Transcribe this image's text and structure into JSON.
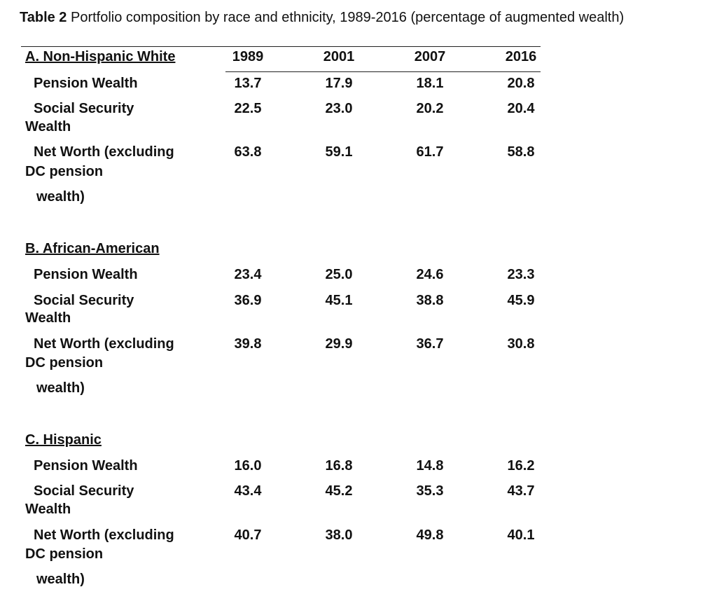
{
  "table": {
    "caption_label": "Table 2",
    "caption_text": "Portfolio composition by race and ethnicity, 1989-2016 (percentage of augmented wealth)",
    "years": [
      "1989",
      "2001",
      "2007",
      "2016"
    ],
    "sections": [
      {
        "title": "A. Non-Hispanic White",
        "rows": [
          {
            "label_lines": [
              "Pension Wealth"
            ],
            "values": [
              "13.7",
              "17.9",
              "18.1",
              "20.8"
            ]
          },
          {
            "label_lines": [
              "Social Security",
              "Wealth"
            ],
            "values": [
              "22.5",
              "23.0",
              "20.2",
              "20.4"
            ]
          },
          {
            "label_lines": [
              "Net Worth (excluding",
              "DC pension",
              "wealth)"
            ],
            "values": [
              "63.8",
              "59.1",
              "61.7",
              "58.8"
            ]
          }
        ]
      },
      {
        "title": "B. African-American",
        "rows": [
          {
            "label_lines": [
              "Pension Wealth"
            ],
            "values": [
              "23.4",
              "25.0",
              "24.6",
              "23.3"
            ]
          },
          {
            "label_lines": [
              "Social Security",
              "Wealth"
            ],
            "values": [
              "36.9",
              "45.1",
              "38.8",
              "45.9"
            ]
          },
          {
            "label_lines": [
              "Net Worth (excluding",
              "DC pension",
              "wealth)"
            ],
            "values": [
              "39.8",
              "29.9",
              "36.7",
              "30.8"
            ]
          }
        ]
      },
      {
        "title": "C. Hispanic",
        "rows": [
          {
            "label_lines": [
              "Pension Wealth"
            ],
            "values": [
              "16.0",
              "16.8",
              "14.8",
              "16.2"
            ]
          },
          {
            "label_lines": [
              "Social Security",
              "Wealth"
            ],
            "values": [
              "43.4",
              "45.2",
              "35.3",
              "43.7"
            ]
          },
          {
            "label_lines": [
              "Net Worth (excluding",
              "DC pension",
              "wealth)"
            ],
            "values": [
              "40.7",
              "38.0",
              "49.8",
              "40.1"
            ]
          }
        ]
      }
    ]
  }
}
